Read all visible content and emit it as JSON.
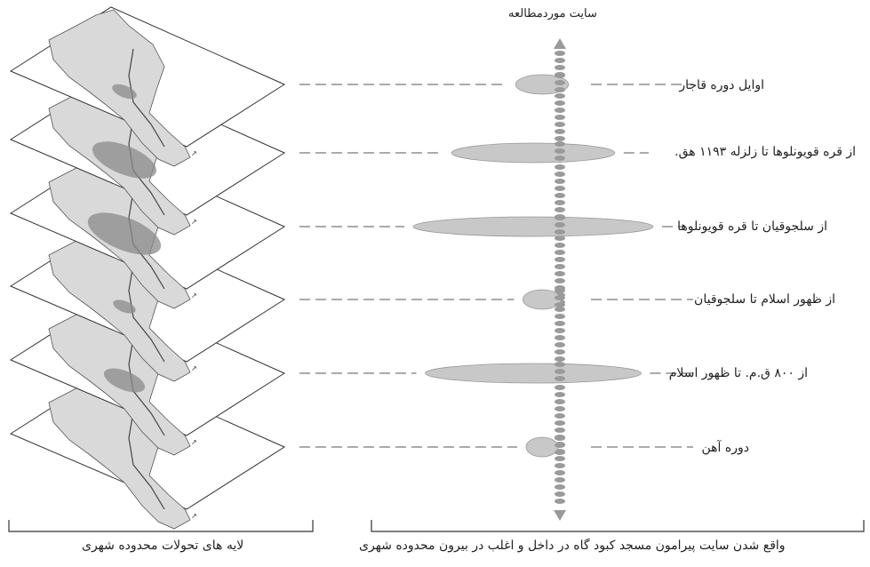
{
  "diagram": {
    "site_axis_title": "سایت موردمطالعه",
    "periods": [
      {
        "label": "اوایل دوره قاجار",
        "extent": 0.22,
        "layer_blob": 0.12
      },
      {
        "label": "از قره قویونلوها تا زلزله ۱۱۹۳ ه‍ق.",
        "extent": 0.68,
        "layer_blob": 0.55
      },
      {
        "label": "از سلجوقیان تا قره قویونلوها",
        "extent": 1.0,
        "layer_blob": 0.65
      },
      {
        "label": "از ظهور اسلام تا سلجوقیان",
        "extent": 0.16,
        "layer_blob": 0.1
      },
      {
        "label": "از ۸۰۰ ق.م. تا ظهور اسلام",
        "extent": 0.9,
        "layer_blob": 0.3
      },
      {
        "label": "دوره آهن",
        "extent": 0.12,
        "layer_blob": 0.0
      }
    ],
    "left_caption": "لایه های تحولات محدوده شهری",
    "right_caption": "واقع شدن سایت پیرامون مسجد کبود گاه در داخل و اغلب در بیرون محدوده شهری"
  },
  "colors": {
    "line": "#333333",
    "map_fill": "#d9d9d9",
    "blob_fill": "#c8c8c8",
    "blob_dark": "#8a8a8a",
    "axis": "#9a9a9a"
  }
}
